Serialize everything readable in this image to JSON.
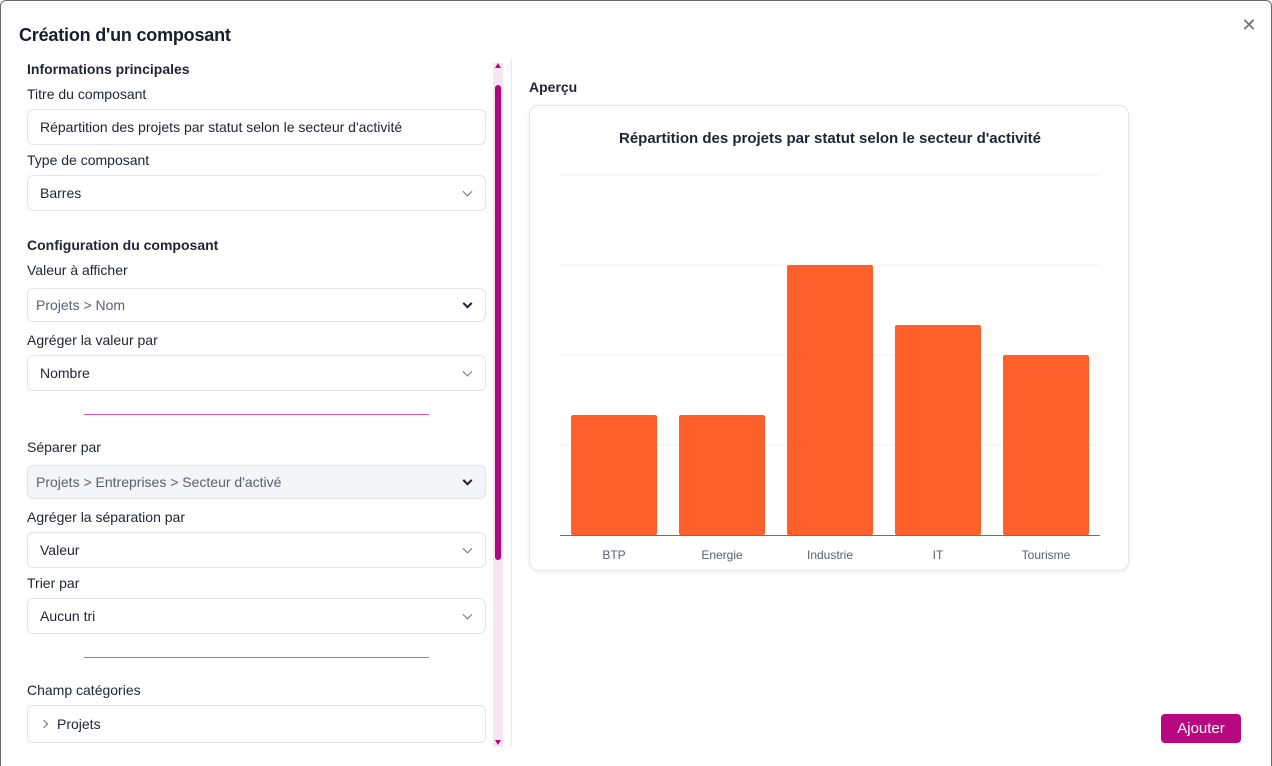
{
  "modal": {
    "title": "Création d'un composant",
    "close_icon": "close-icon"
  },
  "config": {
    "section_main": "Informations principales",
    "title_label": "Titre du composant",
    "title_value": "Répartition des projets par statut selon le secteur d'activité",
    "type_label": "Type de composant",
    "type_value": "Barres",
    "section_config": "Configuration du composant",
    "value_label": "Valeur à afficher",
    "value_value": "Projets > Nom",
    "aggregate_label": "Agréger la valeur par",
    "aggregate_value": "Nombre",
    "split_label": "Séparer par",
    "split_value": "Projets > Entreprises > Secteur d'activé",
    "split_aggregate_label": "Agréger la séparation par",
    "split_aggregate_value": "Valeur",
    "sort_label": "Trier par",
    "sort_value": "Aucun tri",
    "category_label": "Champ catégories",
    "category_value": "Projets"
  },
  "preview": {
    "label": "Aperçu"
  },
  "chart_data": {
    "type": "bar",
    "title": "Répartition des projets par statut selon le secteur d'activité",
    "categories": [
      "BTP",
      "Energie",
      "Industrie",
      "IT",
      "Tourisme"
    ],
    "values": [
      2,
      2,
      4.5,
      3.5,
      3
    ],
    "ylim": [
      0,
      6
    ],
    "grid": true,
    "bar_color": "#ff5f2a"
  },
  "actions": {
    "add_label": "Ajouter"
  },
  "colors": {
    "accent": "#b8087f",
    "divider": "#d85aa8",
    "bar": "#ff5f2a"
  }
}
